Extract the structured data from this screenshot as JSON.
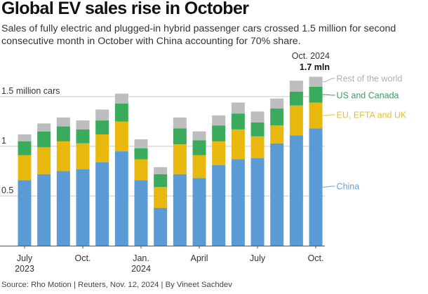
{
  "header": {
    "title": "Global EV sales rise in October",
    "subtitle": "Sales of fully electric and plugged-in hybrid passenger cars crossed 1.5 million for second consecutive month in October with China accounting for 70% share."
  },
  "annotation": {
    "date": "Oct. 2024",
    "value": "1.7 mln"
  },
  "footer": {
    "source": "Source: Rho Motion | Reuters, Nov. 12, 2024 | By Vineet Sachdev"
  },
  "chart_data": {
    "type": "bar",
    "stacked": true,
    "title": "Global EV sales rise in October",
    "xlabel": "",
    "ylabel": "million cars",
    "ylim": [
      0,
      1.75
    ],
    "yticks": [
      {
        "value": 0.5,
        "label": "0.5"
      },
      {
        "value": 1,
        "label": "1"
      },
      {
        "value": 1.5,
        "label": "1.5 million cars"
      }
    ],
    "grid": true,
    "categories": [
      "Jul 2023",
      "Aug 2023",
      "Sep 2023",
      "Oct 2023",
      "Nov 2023",
      "Dec 2023",
      "Jan 2024",
      "Feb 2024",
      "Mar 2024",
      "Apr 2024",
      "May 2024",
      "Jun 2024",
      "Jul 2024",
      "Aug 2024",
      "Sep 2024",
      "Oct 2024"
    ],
    "xticks": [
      {
        "index": 0,
        "label": "July",
        "sublabel": "2023"
      },
      {
        "index": 3,
        "label": "Oct.",
        "sublabel": ""
      },
      {
        "index": 6,
        "label": "Jan.",
        "sublabel": "2024"
      },
      {
        "index": 9,
        "label": "April",
        "sublabel": ""
      },
      {
        "index": 12,
        "label": "July",
        "sublabel": ""
      },
      {
        "index": 15,
        "label": "Oct.",
        "sublabel": ""
      }
    ],
    "legend_placement": "right (direct labels)",
    "series": [
      {
        "name": "China",
        "color": "#5b9bd5",
        "label_color": "#6aa3cf",
        "values": [
          0.66,
          0.72,
          0.75,
          0.77,
          0.84,
          0.95,
          0.66,
          0.38,
          0.72,
          0.68,
          0.81,
          0.87,
          0.88,
          1.03,
          1.11,
          1.18
        ]
      },
      {
        "name": "EU, EFTA and UK",
        "color": "#e8b80e",
        "label_color": "#e2c034",
        "values": [
          0.25,
          0.27,
          0.3,
          0.26,
          0.28,
          0.3,
          0.21,
          0.21,
          0.3,
          0.23,
          0.24,
          0.3,
          0.22,
          0.18,
          0.3,
          0.26
        ]
      },
      {
        "name": "US and Canada",
        "color": "#3aab5c",
        "label_color": "#3f9a63",
        "values": [
          0.14,
          0.16,
          0.15,
          0.14,
          0.14,
          0.18,
          0.11,
          0.13,
          0.16,
          0.15,
          0.16,
          0.16,
          0.14,
          0.17,
          0.14,
          0.16
        ]
      },
      {
        "name": "Rest of the world",
        "color": "#bdbdbd",
        "label_color": "#b0b0b0",
        "values": [
          0.07,
          0.08,
          0.09,
          0.09,
          0.11,
          0.1,
          0.09,
          0.07,
          0.11,
          0.09,
          0.1,
          0.11,
          0.11,
          0.1,
          0.11,
          0.1
        ]
      }
    ]
  }
}
